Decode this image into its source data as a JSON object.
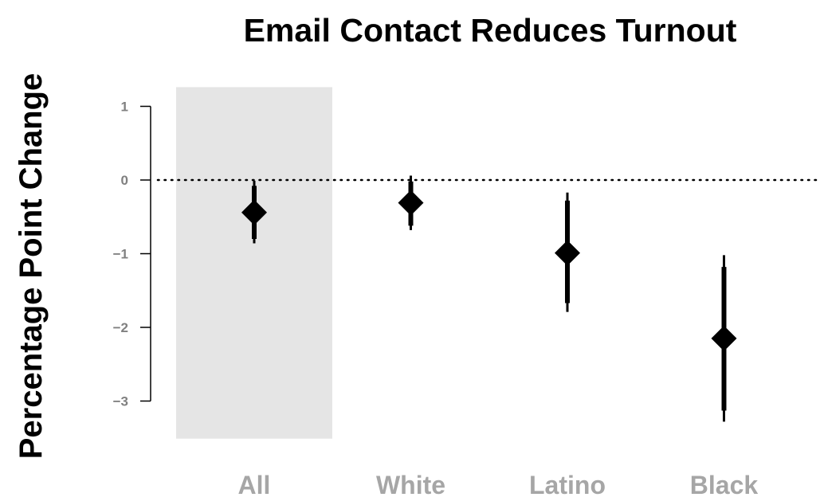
{
  "chart_data": {
    "type": "scatter",
    "title": "Email Contact Reduces Turnout",
    "xlabel": "",
    "ylabel": "Percentage Point Change",
    "categories": [
      "All",
      "White",
      "Latino",
      "Black"
    ],
    "series": [
      {
        "values": [
          -0.44,
          -0.31,
          -0.99,
          -2.15
        ],
        "ci_inner": [
          [
            -0.8,
            -0.08
          ],
          [
            -0.62,
            -0.02
          ],
          [
            -1.67,
            -0.28
          ],
          [
            -3.13,
            -1.18
          ]
        ],
        "ci_outer": [
          [
            -0.86,
            -0.01
          ],
          [
            -0.68,
            0.06
          ],
          [
            -1.79,
            -0.17
          ],
          [
            -3.28,
            -1.02
          ]
        ]
      }
    ],
    "yticks": [
      1,
      0,
      -1,
      -2,
      -3
    ],
    "ylim": [
      -3.5,
      1.25
    ],
    "reference_line": {
      "y": 0,
      "style": "dotted"
    },
    "highlight_category": "All",
    "grid": false,
    "legend": "none",
    "colors": {
      "marker": "#000000",
      "highlight": "#e5e5e5",
      "tick_text": "#808080",
      "category_text": "#a6a6a6"
    }
  }
}
